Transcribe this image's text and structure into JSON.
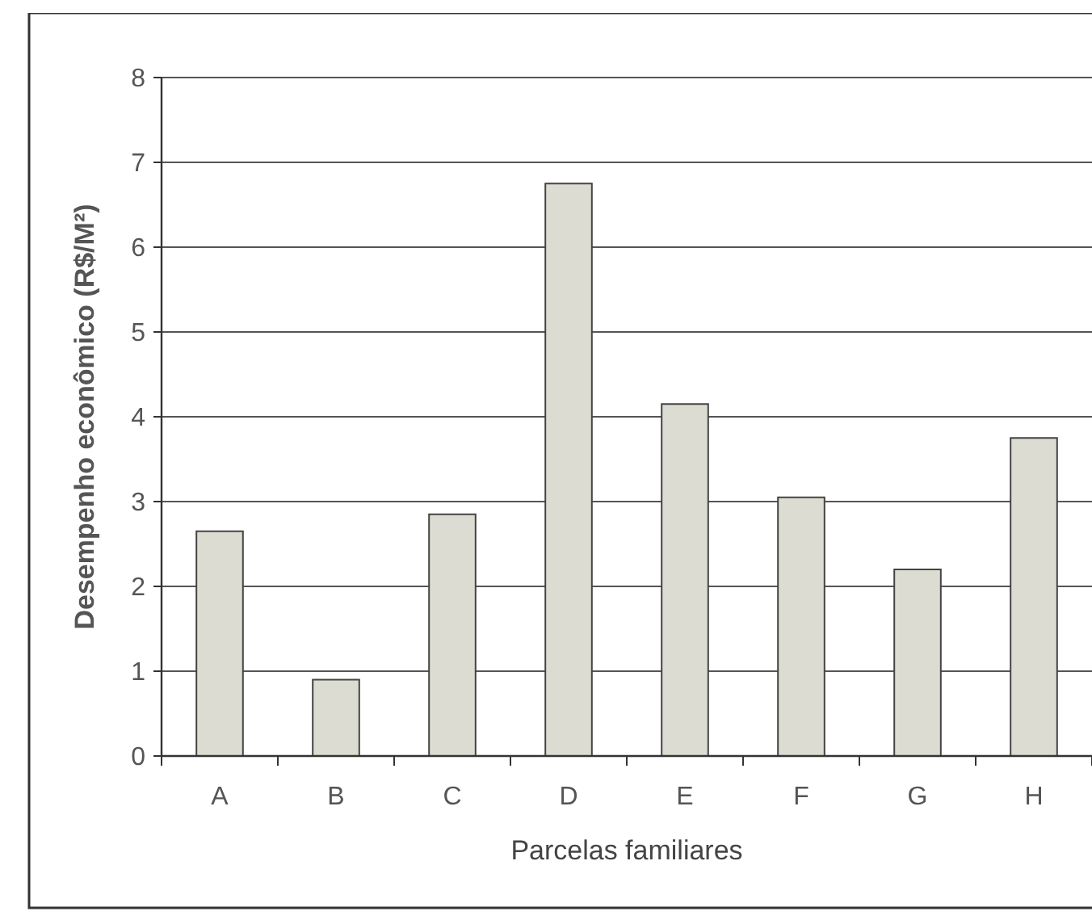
{
  "chart_data": {
    "type": "bar",
    "xlabel": "Parcelas familiares",
    "ylabel": "Desempenho econômico (R$/M²)",
    "categories": [
      "A",
      "B",
      "C",
      "D",
      "E",
      "F",
      "G",
      "H"
    ],
    "values": [
      2.65,
      0.9,
      2.85,
      6.75,
      4.15,
      3.05,
      2.2,
      3.75
    ],
    "color": "#dcdcd2",
    "ylim": [
      0,
      8
    ],
    "yticks": [
      0,
      1,
      2,
      3,
      4,
      5,
      6,
      7,
      8
    ],
    "grid": "y"
  }
}
